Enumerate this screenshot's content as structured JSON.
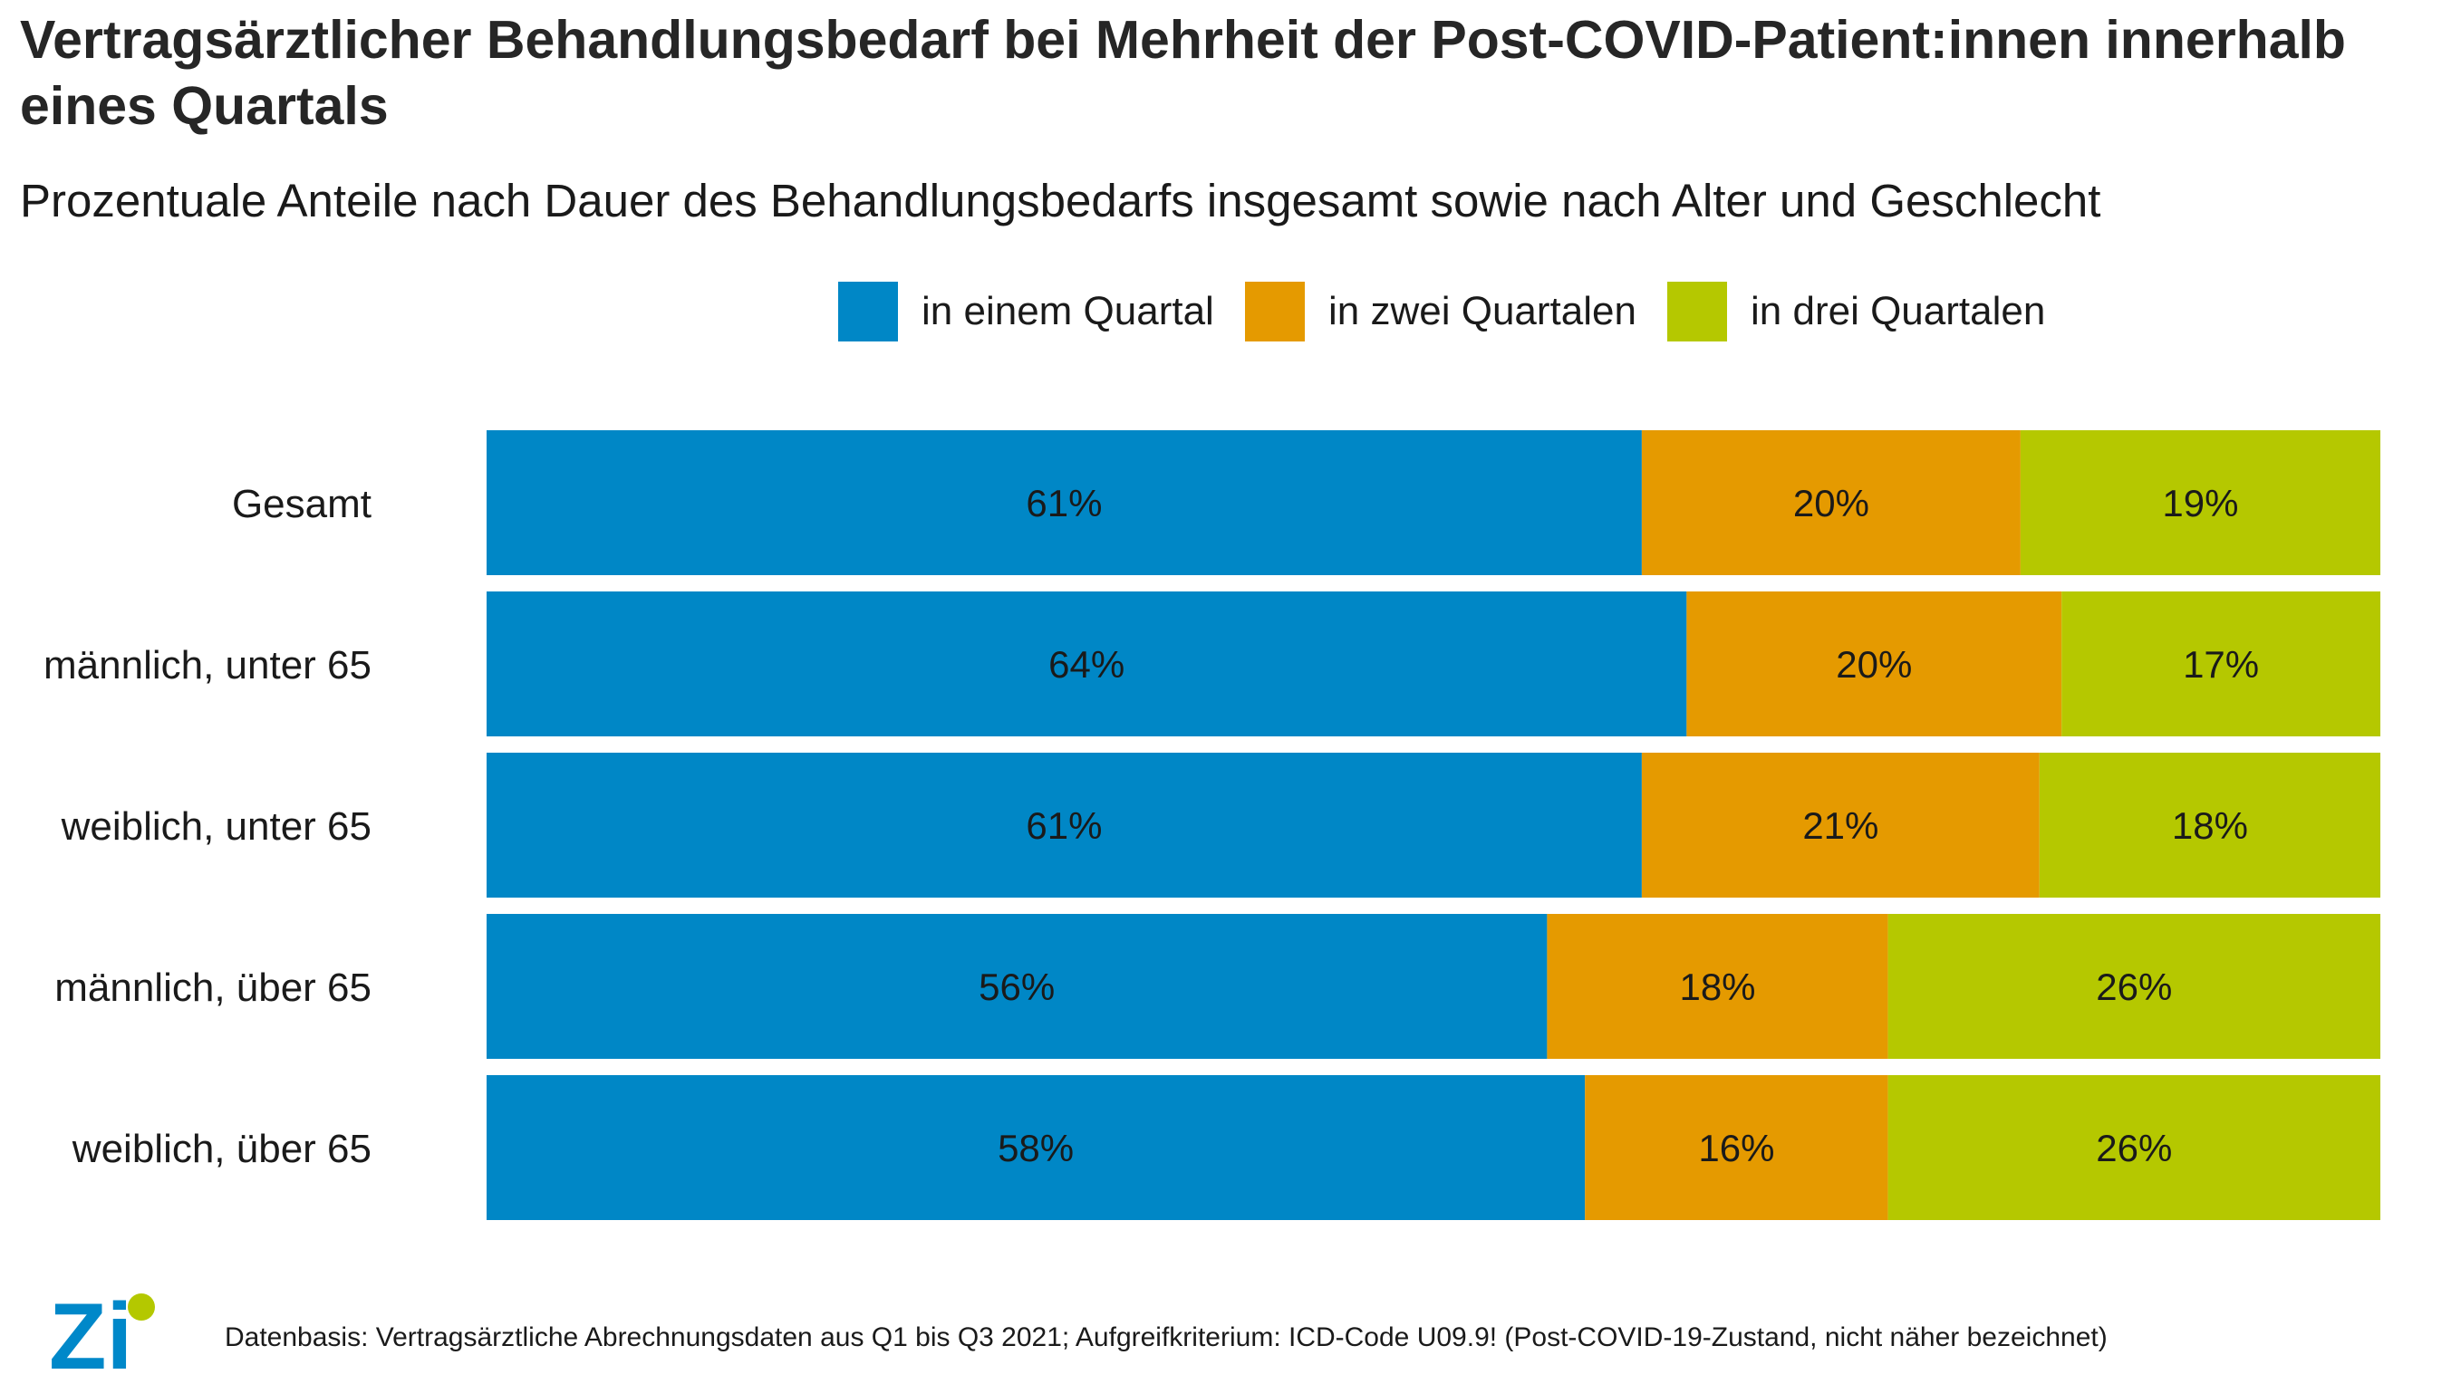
{
  "title": "Vertragsärztlicher Behandlungsbedarf bei Mehrheit der Post-COVID-Patient:innen innerhalb eines Quartals",
  "subtitle": "Prozentuale Anteile nach Dauer des Behandlungsbedarfs insgesamt sowie nach Alter und Geschlecht",
  "footnote": "Datenbasis: Vertragsärztliche Abrechnungsdaten aus Q1 bis Q3 2021; Aufgreifkriterium: ICD-Code U09.9! (Post-COVID-19-Zustand, nicht näher bezeichnet)",
  "logo": {
    "text": "Zi",
    "colors": {
      "letters": "#0088c9",
      "dot": "#b4c800"
    }
  },
  "chart_data": {
    "type": "bar",
    "orientation": "horizontal",
    "stacked": true,
    "stack_mode": "percent",
    "categories": [
      "Gesamt",
      "männlich, unter 65",
      "weiblich, unter 65",
      "männlich, über 65",
      "weiblich, über 65"
    ],
    "series": [
      {
        "name": "in einem Quartal",
        "color": "#0087c6",
        "values": [
          61,
          64,
          61,
          56,
          58
        ],
        "labels": [
          "61%",
          "64%",
          "61%",
          "56%",
          "58%"
        ]
      },
      {
        "name": "in zwei Quartalen",
        "color": "#e59a00",
        "values": [
          20,
          20,
          21,
          18,
          16
        ],
        "labels": [
          "20%",
          "20%",
          "21%",
          "18%",
          "16%"
        ]
      },
      {
        "name": "in drei Quartalen",
        "color": "#b5c800",
        "values": [
          19,
          17,
          18,
          26,
          26
        ],
        "labels": [
          "19%",
          "17%",
          "18%",
          "26%",
          "26%"
        ]
      }
    ],
    "legend": "top",
    "grid": false,
    "xlabel": "",
    "ylabel": ""
  }
}
